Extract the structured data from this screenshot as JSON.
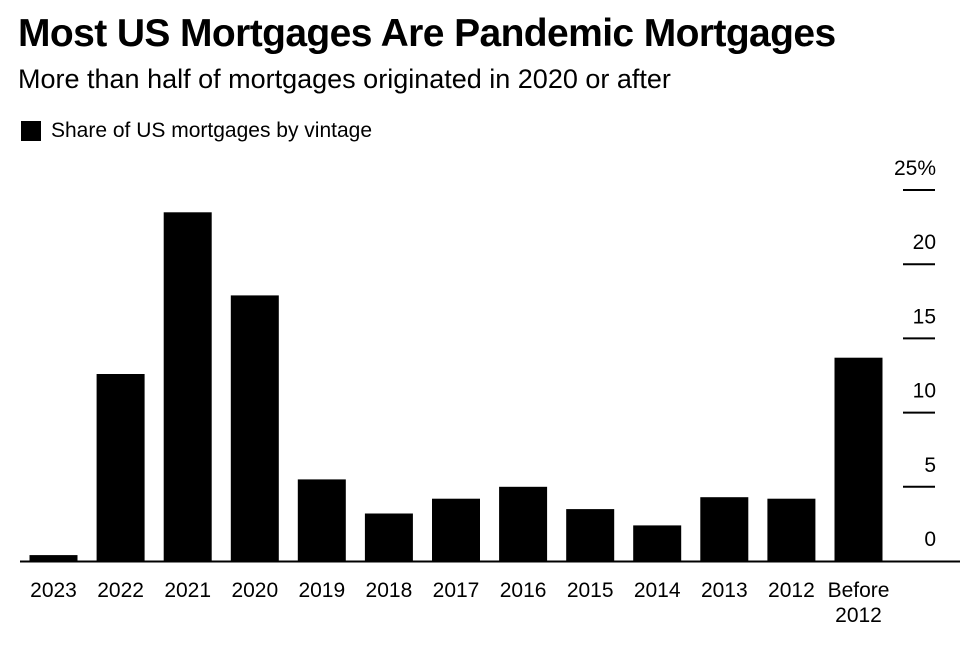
{
  "header": {
    "title": "Most US Mortgages Are Pandemic Mortgages",
    "subtitle": "More than half of mortgages originated in 2020 or after"
  },
  "colors": {
    "bar": "#000000",
    "axis": "#000000",
    "background": "#ffffff"
  },
  "chart_data": {
    "type": "bar",
    "title": "Most US Mortgages Are Pandemic Mortgages",
    "subtitle": "More than half of mortgages originated in 2020 or after",
    "xlabel": "",
    "ylabel": "",
    "ylim": [
      0,
      25
    ],
    "yticks": [
      0,
      5,
      10,
      15,
      20,
      25
    ],
    "ytick_labels": [
      "0",
      "5",
      "10",
      "15",
      "20",
      "25%"
    ],
    "y_axis_side": "right",
    "grid": false,
    "legend_position": "top-left",
    "categories": [
      "2023",
      "2022",
      "2021",
      "2020",
      "2019",
      "2018",
      "2017",
      "2016",
      "2015",
      "2014",
      "2013",
      "2012",
      "Before 2012"
    ],
    "series": [
      {
        "name": "Share of US mortgages by vintage",
        "values": [
          0.4,
          12.6,
          23.5,
          17.9,
          5.5,
          3.2,
          4.2,
          5.0,
          3.5,
          2.4,
          4.3,
          4.2,
          13.7
        ]
      }
    ]
  }
}
